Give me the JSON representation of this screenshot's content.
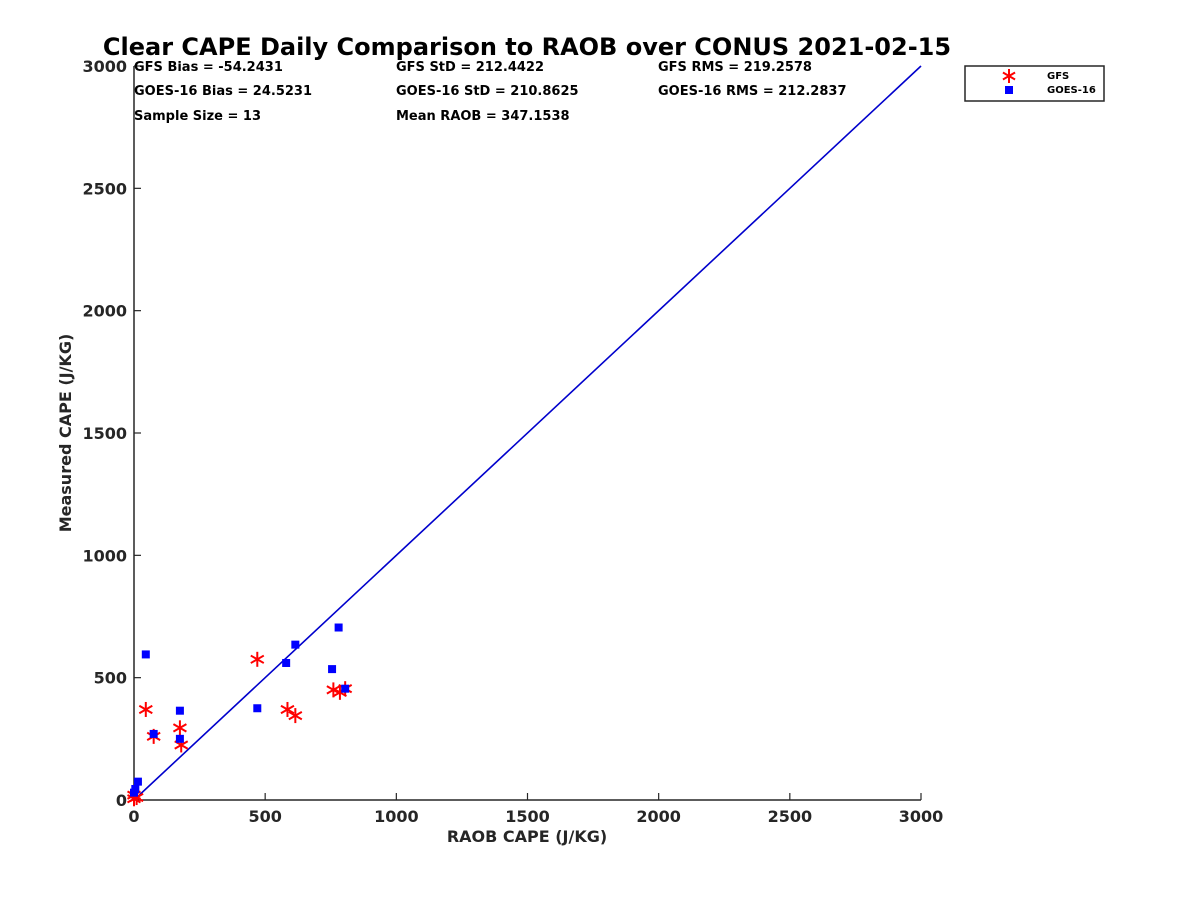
{
  "chart_data": {
    "type": "scatter",
    "title": "Clear CAPE Daily Comparison to RAOB over CONUS 2021-02-15",
    "xlabel": "RAOB CAPE (J/KG)",
    "ylabel": "Measured CAPE (J/KG)",
    "xlim": [
      0,
      3000
    ],
    "ylim": [
      0,
      3000
    ],
    "xticks": [
      "0",
      "500",
      "1000",
      "1500",
      "2000",
      "2500",
      "3000"
    ],
    "yticks": [
      "0",
      "500",
      "1000",
      "1500",
      "2000",
      "2500",
      "3000"
    ],
    "grid": false,
    "legend_position": "top-right",
    "stats": [
      "GFS Bias = -54.2431",
      "GFS StD = 212.4422",
      "GFS RMS = 219.2578",
      "GOES-16 Bias = 24.5231",
      "GOES-16 StD = 210.8625",
      "GOES-16 RMS = 212.2837",
      "Sample Size = 13",
      "Mean RAOB = 347.1538"
    ],
    "reference_line": {
      "x": [
        0,
        3000
      ],
      "y": [
        0,
        3000
      ],
      "color": "#0000cc"
    },
    "series": [
      {
        "name": "GFS",
        "marker": "asterisk",
        "color": "#ff0000",
        "x": [
          0,
          10,
          45,
          75,
          175,
          180,
          470,
          585,
          615,
          760,
          785,
          805,
          0
        ],
        "y": [
          5,
          10,
          370,
          260,
          295,
          225,
          575,
          370,
          345,
          450,
          440,
          455,
          20
        ]
      },
      {
        "name": "GOES-16",
        "marker": "square",
        "color": "#0000ff",
        "x": [
          0,
          5,
          15,
          45,
          75,
          175,
          175,
          470,
          580,
          615,
          755,
          780,
          805
        ],
        "y": [
          30,
          45,
          75,
          595,
          270,
          365,
          250,
          375,
          560,
          635,
          535,
          705,
          455
        ]
      }
    ]
  }
}
